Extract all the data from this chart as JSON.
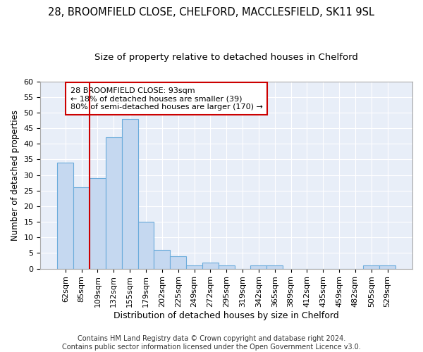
{
  "title": "28, BROOMFIELD CLOSE, CHELFORD, MACCLESFIELD, SK11 9SL",
  "subtitle": "Size of property relative to detached houses in Chelford",
  "xlabel": "Distribution of detached houses by size in Chelford",
  "ylabel": "Number of detached properties",
  "bar_labels": [
    "62sqm",
    "85sqm",
    "109sqm",
    "132sqm",
    "155sqm",
    "179sqm",
    "202sqm",
    "225sqm",
    "249sqm",
    "272sqm",
    "295sqm",
    "319sqm",
    "342sqm",
    "365sqm",
    "389sqm",
    "412sqm",
    "435sqm",
    "459sqm",
    "482sqm",
    "505sqm",
    "529sqm"
  ],
  "bar_values": [
    34,
    26,
    29,
    42,
    48,
    15,
    6,
    4,
    1,
    2,
    1,
    0,
    1,
    1,
    0,
    0,
    0,
    0,
    0,
    1,
    1
  ],
  "bar_color": "#c5d8f0",
  "bar_edge_color": "#6aabdb",
  "vline_x_idx": 1.5,
  "vline_color": "#cc0000",
  "annotation_text": "28 BROOMFIELD CLOSE: 93sqm\n← 18% of detached houses are smaller (39)\n80% of semi-detached houses are larger (170) →",
  "annotation_box_color": "#ffffff",
  "annotation_box_edge_color": "#cc0000",
  "ylim": [
    0,
    60
  ],
  "yticks": [
    0,
    5,
    10,
    15,
    20,
    25,
    30,
    35,
    40,
    45,
    50,
    55,
    60
  ],
  "footnote": "Contains HM Land Registry data © Crown copyright and database right 2024.\nContains public sector information licensed under the Open Government Licence v3.0.",
  "fig_facecolor": "#ffffff",
  "bg_color": "#e8eef8",
  "grid_color": "#ffffff",
  "title_fontsize": 10.5,
  "subtitle_fontsize": 9.5,
  "xlabel_fontsize": 9,
  "ylabel_fontsize": 8.5,
  "tick_fontsize": 8,
  "annotation_fontsize": 8,
  "footnote_fontsize": 7
}
